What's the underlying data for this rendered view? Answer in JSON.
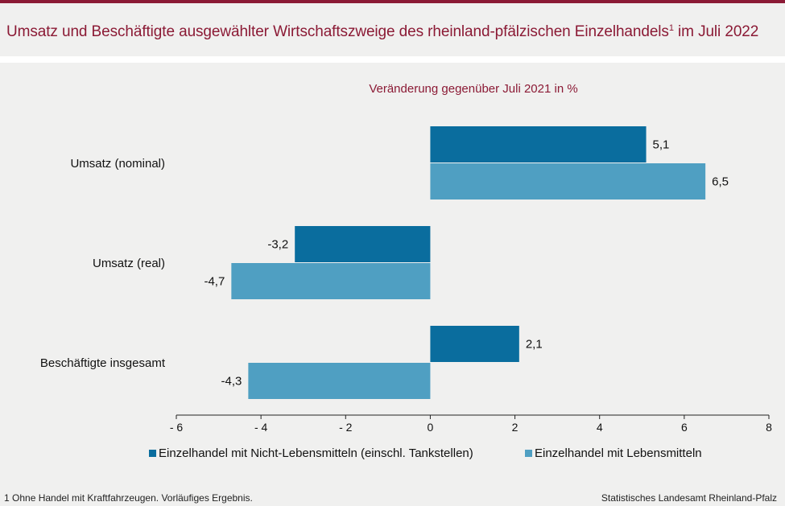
{
  "header": {
    "title_main": "Umsatz und Beschäftigte ausgewählter Wirtschaftszweige des rheinland-pfälzischen Einzelhandels",
    "title_footnote_mark": "1",
    "title_suffix": " im Juli 2022"
  },
  "chart_data": {
    "type": "bar",
    "orientation": "horizontal",
    "subtitle": "Veränderung gegenüber Juli 2021 in %",
    "categories": [
      "Umsatz (nominal)",
      "Umsatz (real)",
      "Beschäftigte insgesamt"
    ],
    "series": [
      {
        "name": "Einzelhandel mit Nicht-Lebensmitteln (einschl. Tankstellen)",
        "values": [
          5.1,
          -3.2,
          2.1
        ],
        "labels": [
          "5,1",
          "-3,2",
          "2,1"
        ],
        "color": "#0a6d9e"
      },
      {
        "name": "Einzelhandel mit Lebensmitteln",
        "values": [
          6.5,
          -4.7,
          -4.3
        ],
        "labels": [
          "6,5",
          "-4,7",
          "-4,3"
        ],
        "color": "#4f9fc2"
      }
    ],
    "xlim": [
      -6,
      8
    ],
    "xticks": [
      -6,
      -4,
      -2,
      0,
      2,
      4,
      6,
      8
    ],
    "xtick_labels": [
      "- 6",
      "- 4",
      "- 2",
      "0",
      "2",
      "4",
      "6",
      "8"
    ],
    "grid": false,
    "legend_position": "bottom"
  },
  "footer": {
    "footnote": "1 Ohne Handel mit Kraftfahrzeugen. Vorläufiges Ergebnis.",
    "source": "Statistisches Landesamt Rheinland-Pfalz"
  },
  "colors": {
    "accent": "#8b1a35",
    "background": "#f0f0ef"
  }
}
